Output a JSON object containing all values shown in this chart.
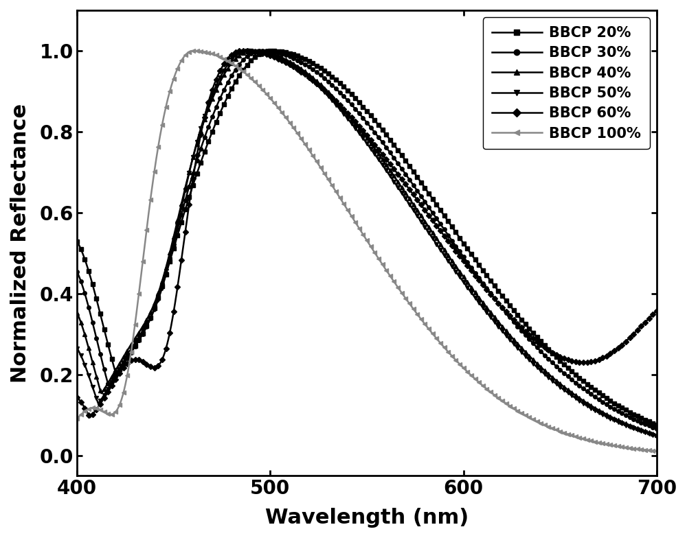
{
  "xlabel": "Wavelength (nm)",
  "ylabel": "Normalized Reflectance",
  "xlim": [
    400,
    700
  ],
  "ylim": [
    -0.05,
    1.1
  ],
  "xticks": [
    400,
    500,
    600,
    700
  ],
  "yticks": [
    0.0,
    0.2,
    0.4,
    0.6,
    0.8,
    1.0
  ],
  "series": [
    {
      "label": "BBCP 20%",
      "color": "#000000",
      "marker": "s"
    },
    {
      "label": "BBCP 30%",
      "color": "#000000",
      "marker": "o"
    },
    {
      "label": "BBCP 40%",
      "color": "#000000",
      "marker": "^"
    },
    {
      "label": "BBCP 50%",
      "color": "#000000",
      "marker": "v"
    },
    {
      "label": "BBCP 60%",
      "color": "#000000",
      "marker": "D"
    },
    {
      "label": "BBCP 100%",
      "color": "#888888",
      "marker": "<"
    }
  ],
  "background_color": "#ffffff",
  "font_size_label": 22,
  "font_size_tick": 20,
  "font_size_legend": 15,
  "marker_size": 4,
  "line_width": 1.8,
  "markevery": 6
}
